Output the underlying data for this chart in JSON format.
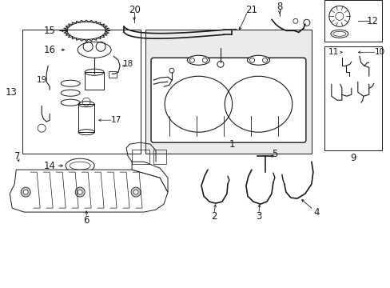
{
  "bg_color": "#ffffff",
  "lc": "#1a1a1a",
  "gray_fill": "#e8e8e8",
  "fig_w": 4.89,
  "fig_h": 3.6,
  "dpi": 100,
  "label_fs": 8.5,
  "small_fs": 7.5
}
